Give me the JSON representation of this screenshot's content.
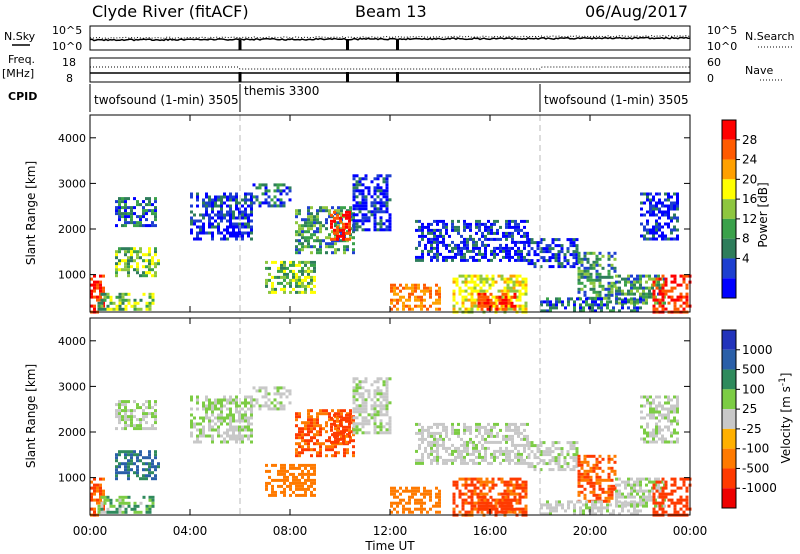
{
  "header": {
    "station": "Clyde River (fitACF)",
    "beam": "Beam 13",
    "date": "06/Aug/2017"
  },
  "side_labels": {
    "nsky": "N.Sky",
    "nsearch": "N.Search",
    "freq": "Freq.",
    "freq_unit": "[MHz]",
    "nave": "Nave",
    "cpid": "CPID"
  },
  "noise_axis": {
    "left_top": "10^5",
    "left_bottom": "10^0",
    "right_top": "10^5",
    "right_bottom": "10^0"
  },
  "freq_axis": {
    "left_top": "18",
    "left_bottom": "8",
    "right_top": "60",
    "right_bottom": "0"
  },
  "cpid_segments": [
    {
      "label": "twofsound (1-min) 3505",
      "start_hour": 0
    },
    {
      "label": "themis 3300",
      "start_hour": 6
    },
    {
      "label": "twofsound (1-min) 3505",
      "start_hour": 18
    }
  ],
  "x_axis": {
    "title": "Time UT",
    "ticks": [
      "00:00",
      "04:00",
      "08:00",
      "12:00",
      "16:00",
      "20:00",
      "00:00"
    ],
    "tick_hours": [
      0,
      4,
      8,
      12,
      16,
      20,
      24
    ]
  },
  "power_panel": {
    "ylabel": "Slant Range [km]",
    "cbar_label": "Power [dB]",
    "cbar_ticks": [
      "28",
      "24",
      "20",
      "16",
      "12",
      "8",
      "4"
    ],
    "colors": [
      "#ff0000",
      "#ff5a00",
      "#ffa000",
      "#ffff00",
      "#8ec63f",
      "#3aa14a",
      "#2e7d5b",
      "#1d3fd0",
      "#0000ff"
    ]
  },
  "velocity_panel": {
    "ylabel": "Slant Range [km]",
    "cbar_label": "Velocity [m s^-1]",
    "cbar_ticks": [
      "1000",
      "500",
      "100",
      "25",
      "-25",
      "-100",
      "-500",
      "-1000"
    ],
    "colors": [
      "#2233bb",
      "#2a5fa8",
      "#2f8a5c",
      "#7ccc44",
      "#c8c8c8",
      "#ffb000",
      "#ff7a00",
      "#ff3a00",
      "#ee0000"
    ]
  },
  "chart_data": {
    "type": "heatmap",
    "x_range_hours": [
      0,
      24
    ],
    "y_range_km": [
      180,
      4500
    ],
    "yticks": [
      1000,
      2000,
      3000,
      4000
    ],
    "regions": [
      {
        "t0": 0.0,
        "t1": 0.5,
        "r0": 200,
        "r1": 1000,
        "p": 26,
        "v": -300
      },
      {
        "t0": 0.3,
        "t1": 2.5,
        "r0": 250,
        "r1": 600,
        "p": 12,
        "v": 50
      },
      {
        "t0": 1.0,
        "t1": 2.8,
        "r0": 1000,
        "r1": 1600,
        "p": 12,
        "v": 300
      },
      {
        "t0": 1.0,
        "t1": 2.6,
        "r0": 2100,
        "r1": 2700,
        "p": 8,
        "v": 20
      },
      {
        "t0": 4.0,
        "t1": 6.5,
        "r0": 1800,
        "r1": 2800,
        "p": 6,
        "v": 20
      },
      {
        "t0": 6.5,
        "t1": 8.0,
        "r0": 2500,
        "r1": 3000,
        "p": 8,
        "v": 10
      },
      {
        "t0": 7.0,
        "t1": 9.0,
        "r0": 600,
        "r1": 1300,
        "p": 12,
        "v": -200
      },
      {
        "t0": 8.2,
        "t1": 10.5,
        "r0": 1500,
        "r1": 2500,
        "p": 10,
        "v": -300
      },
      {
        "t0": 9.6,
        "t1": 10.4,
        "r0": 1800,
        "r1": 2400,
        "p": 26,
        "v": -400
      },
      {
        "t0": 10.5,
        "t1": 12.0,
        "r0": 2000,
        "r1": 3200,
        "p": 6,
        "v": 15
      },
      {
        "t0": 12.0,
        "t1": 14.0,
        "r0": 250,
        "r1": 800,
        "p": 22,
        "v": -200
      },
      {
        "t0": 13.0,
        "t1": 17.5,
        "r0": 1300,
        "r1": 2200,
        "p": 6,
        "v": 10
      },
      {
        "t0": 14.5,
        "t1": 17.5,
        "r0": 200,
        "r1": 1000,
        "p": 16,
        "v": -350
      },
      {
        "t0": 15.5,
        "t1": 17.0,
        "r0": 250,
        "r1": 600,
        "p": 26,
        "v": -400
      },
      {
        "t0": 17.5,
        "t1": 19.5,
        "r0": 1200,
        "r1": 1800,
        "p": 6,
        "v": 10
      },
      {
        "t0": 19.5,
        "t1": 21.0,
        "r0": 500,
        "r1": 1500,
        "p": 10,
        "v": -300
      },
      {
        "t0": 21.0,
        "t1": 23.0,
        "r0": 400,
        "r1": 1000,
        "p": 10,
        "v": 15
      },
      {
        "t0": 22.5,
        "t1": 24.0,
        "r0": 200,
        "r1": 1000,
        "p": 26,
        "v": -500
      },
      {
        "t0": 18.0,
        "t1": 22.0,
        "r0": 200,
        "r1": 500,
        "p": 8,
        "v": 10
      },
      {
        "t0": 22.0,
        "t1": 23.5,
        "r0": 1800,
        "r1": 2800,
        "p": 6,
        "v": 20
      }
    ]
  }
}
